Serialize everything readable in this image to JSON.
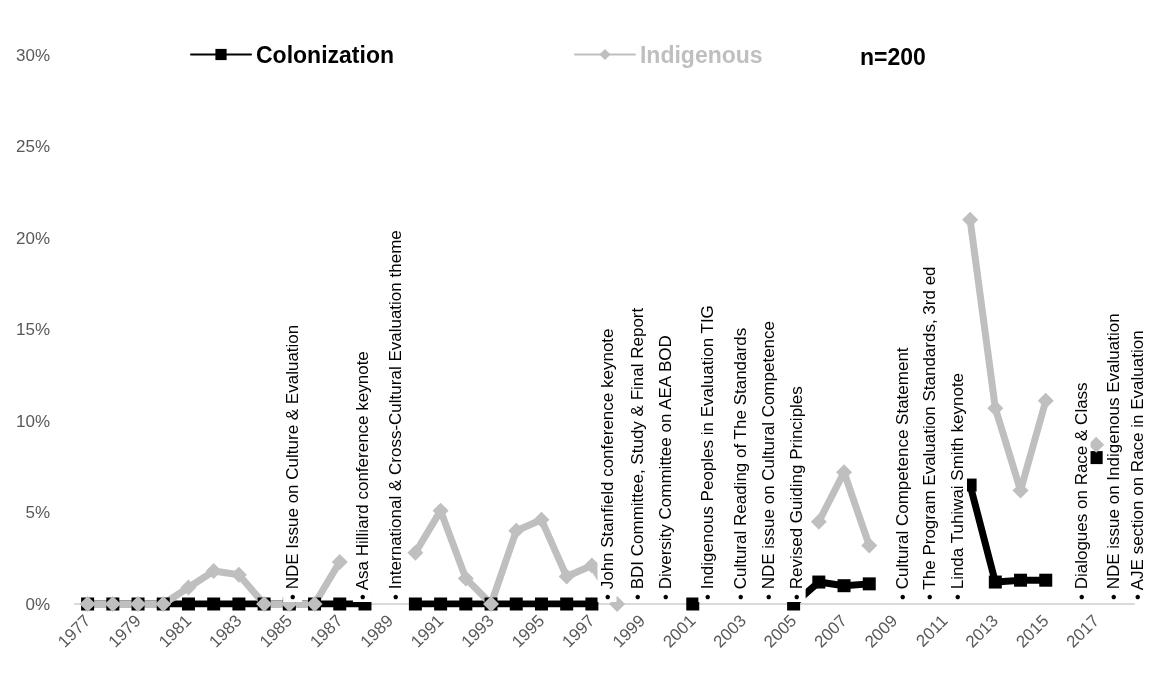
{
  "chart_data": {
    "type": "line",
    "categories": [
      "1977",
      null,
      "1979",
      null,
      "1981",
      null,
      "1983",
      null,
      "1985",
      null,
      "1987",
      null,
      "1989",
      null,
      "1991",
      null,
      "1993",
      null,
      "1995",
      null,
      "1997",
      null,
      "1999",
      null,
      "2001",
      null,
      "2003",
      null,
      "2005",
      null,
      "2007",
      null,
      "2009",
      null,
      "2011",
      null,
      "2013",
      null,
      "2015",
      null,
      "2017",
      null
    ],
    "series": [
      {
        "name": "Colonization",
        "color": "#000000",
        "marker": "square",
        "values": [
          0,
          0,
          0,
          0,
          0,
          0,
          0,
          0,
          0,
          0,
          0,
          0,
          null,
          0,
          0,
          0,
          0,
          0,
          0,
          0,
          0,
          null,
          null,
          null,
          0,
          null,
          null,
          null,
          0,
          1.2,
          1.0,
          1.1,
          null,
          null,
          null,
          6.5,
          1.2,
          1.3,
          1.3,
          null,
          8.0,
          null
        ]
      },
      {
        "name": "Indigenous",
        "color": "#bfbfbf",
        "marker": "diamond",
        "values": [
          0,
          0,
          0,
          0,
          0.9,
          1.8,
          1.6,
          0,
          0,
          0,
          2.3,
          null,
          null,
          2.8,
          5.1,
          1.4,
          0,
          4.0,
          4.6,
          1.5,
          2.1,
          0,
          null,
          null,
          null,
          null,
          null,
          null,
          null,
          4.5,
          7.2,
          3.2,
          null,
          null,
          null,
          21.0,
          10.7,
          6.2,
          11.1,
          null,
          8.7,
          null
        ]
      }
    ],
    "ylim": [
      0,
      30
    ],
    "yticks": [
      {
        "value": 0,
        "label": "0%"
      },
      {
        "value": 5,
        "label": "5%"
      },
      {
        "value": 10,
        "label": "10%"
      },
      {
        "value": 15,
        "label": "15%"
      },
      {
        "value": 20,
        "label": "20%"
      },
      {
        "value": 25,
        "label": "25%"
      },
      {
        "value": 30,
        "label": "30%"
      }
    ],
    "legend": "top",
    "grid": false,
    "annotations": [
      "n=200",
      "• NDE Issue on Culture & Evaluation",
      "• Asa Hilliard conference keynote",
      "• International & Cross-Cultural Evaluation theme",
      "• John Stanfield conference keynote",
      "• BDI Committee, Study & Final Report",
      "• Diversity Committee on AEA BOD",
      "• Indigenous Peoples in Evaluation TIG",
      "• Cultural Reading of The Standards",
      "• NDE issue on Cultural Competence",
      "• Revised Guiding Principles",
      "• Cultural Competence Statement",
      "• The Program Evaluation Standards, 3rd ed",
      "• Linda Tuhiwai Smith keynote",
      "• Dialogues on Race & Class",
      "• NDE issue on Indigenous Evaluation",
      "• AJE section on Race in Evaluation"
    ]
  }
}
